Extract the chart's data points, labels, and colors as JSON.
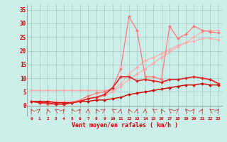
{
  "background_color": "#cceee8",
  "grid_color": "#aacccc",
  "x_labels": [
    "0",
    "1",
    "2",
    "3",
    "4",
    "5",
    "6",
    "7",
    "8",
    "9",
    "10",
    "11",
    "12",
    "13",
    "14",
    "15",
    "16",
    "17",
    "18",
    "19",
    "20",
    "21",
    "22",
    "23"
  ],
  "xlabel": "Vent moyen/en rafales ( km/h )",
  "ylabel_ticks": [
    0,
    5,
    10,
    15,
    20,
    25,
    30,
    35
  ],
  "ylim": [
    -4,
    37
  ],
  "xlim": [
    -0.5,
    23.5
  ],
  "line1_color": "#ffaaaa",
  "line1_lw": 0.8,
  "line1_ms": 2.0,
  "line1_y": [
    5.5,
    5.5,
    5.5,
    5.5,
    5.5,
    5.5,
    5.5,
    5.5,
    5.5,
    5.5,
    5.5,
    8.0,
    11.5,
    14.0,
    16.5,
    17.5,
    19.0,
    20.5,
    22.0,
    23.0,
    23.5,
    24.5,
    24.5,
    24.0
  ],
  "line2_color": "#ffaaaa",
  "line2_lw": 0.8,
  "line2_ms": 2.0,
  "line2_y": [
    1.5,
    1.5,
    1.5,
    1.5,
    1.5,
    1.5,
    2.0,
    2.5,
    3.0,
    3.5,
    5.0,
    7.0,
    9.5,
    11.5,
    13.5,
    15.5,
    17.5,
    19.5,
    21.5,
    23.0,
    25.0,
    27.0,
    27.5,
    27.5
  ],
  "line3_color": "#ff7777",
  "line3_lw": 0.9,
  "line3_ms": 2.0,
  "line3_y": [
    1.5,
    1.0,
    0.5,
    0.5,
    0.5,
    1.0,
    2.0,
    3.5,
    4.5,
    5.0,
    6.5,
    13.5,
    32.5,
    27.5,
    10.5,
    10.5,
    9.5,
    29.0,
    24.5,
    26.0,
    29.0,
    27.5,
    27.0,
    26.5
  ],
  "line4_color": "#cc0000",
  "line4_lw": 1.0,
  "line4_ms": 2.0,
  "line4_y": [
    1.5,
    1.5,
    1.5,
    1.0,
    1.0,
    1.0,
    1.5,
    1.5,
    2.0,
    2.0,
    2.5,
    3.0,
    4.0,
    4.5,
    5.0,
    5.5,
    6.0,
    6.5,
    7.0,
    7.5,
    7.5,
    8.0,
    7.5,
    7.5
  ],
  "line5_color": "#dd2222",
  "line5_lw": 1.2,
  "line5_ms": 2.0,
  "line5_y": [
    1.5,
    1.0,
    1.0,
    0.5,
    0.5,
    1.0,
    1.5,
    2.5,
    3.0,
    4.0,
    6.5,
    10.5,
    10.5,
    9.0,
    9.5,
    9.0,
    8.5,
    9.5,
    9.5,
    10.0,
    10.5,
    10.0,
    9.5,
    8.0
  ],
  "tick_color": "#cc0000",
  "xlabel_color": "#cc0000",
  "arrow_color": "#cc2222"
}
